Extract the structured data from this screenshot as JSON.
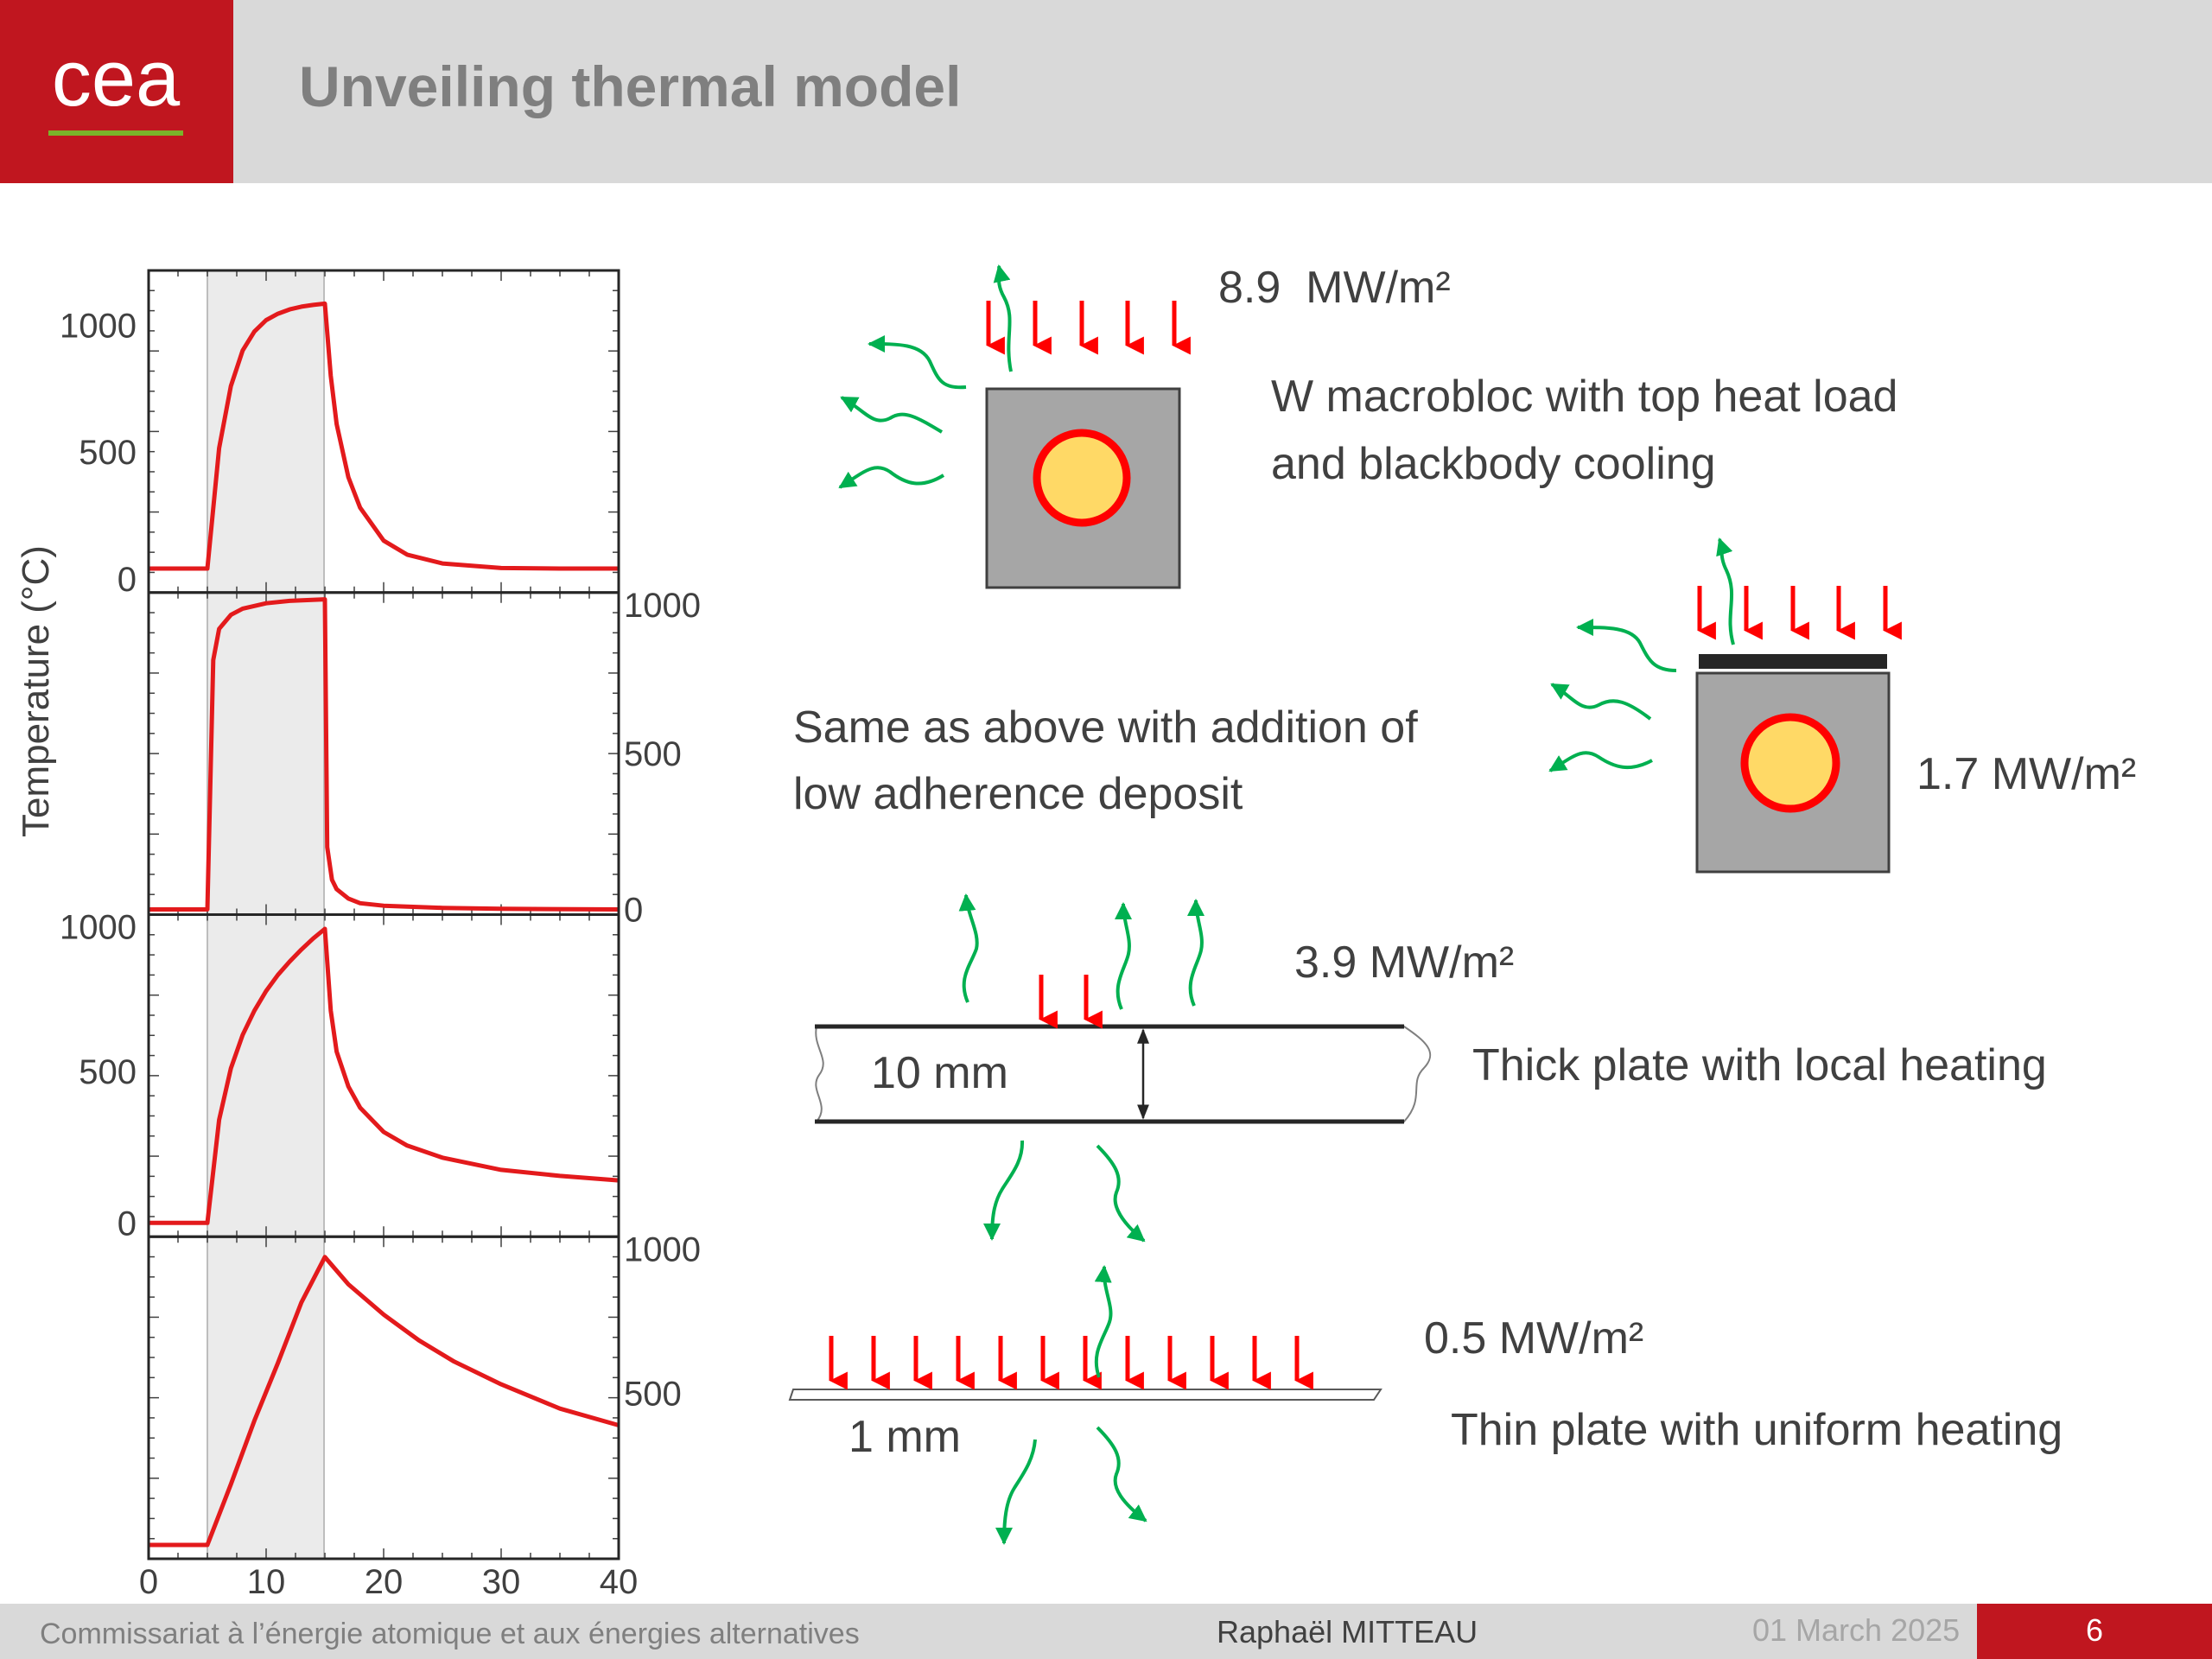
{
  "header": {
    "logo_text": "cea",
    "title": "Unveiling thermal model",
    "colors": {
      "band": "#d9d9d9",
      "brand_red": "#c0161f",
      "logo_line": "#7ab42a"
    }
  },
  "footer": {
    "organization": "Commissariat à l’énergie atomique et aux énergies alternatives",
    "author": "Raphaël MITTEAU",
    "date": "01 March 2025",
    "page": "6"
  },
  "chart_data": {
    "type": "line",
    "ylabel": "Temperature (°C)",
    "xlim": [
      0,
      40
    ],
    "x_ticks": [
      "0",
      "10",
      "20",
      "30",
      "40"
    ],
    "shaded_interval": [
      5,
      15
    ],
    "line_color": "#e31a1c",
    "grid": false,
    "panels": [
      {
        "y_axis_side": "left",
        "y_ticks": [
          "1000",
          "500",
          "0"
        ],
        "ylim": [
          0,
          1100
        ],
        "x": [
          0,
          5,
          5,
          6,
          7,
          8,
          9,
          10,
          11,
          12,
          13,
          14,
          15,
          15.5,
          16,
          17,
          18,
          20,
          22,
          25,
          30,
          35,
          40
        ],
        "y": [
          40,
          40,
          40,
          515,
          760,
          900,
          975,
          1020,
          1045,
          1062,
          1073,
          1080,
          1085,
          800,
          610,
          400,
          280,
          150,
          95,
          60,
          42,
          40,
          40
        ]
      },
      {
        "y_axis_side": "right",
        "y_ticks": [
          "1000",
          "500",
          "0"
        ],
        "ylim": [
          0,
          1000
        ],
        "x": [
          0,
          5,
          5,
          5.5,
          6,
          7,
          8,
          10,
          12,
          15,
          15.2,
          15.6,
          16,
          17,
          18,
          20,
          25,
          30,
          40
        ],
        "y": [
          0,
          0,
          0,
          800,
          900,
          945,
          965,
          982,
          990,
          995,
          200,
          95,
          65,
          35,
          20,
          12,
          5,
          2,
          0
        ]
      },
      {
        "y_axis_side": "left",
        "y_ticks": [
          "1000",
          "500",
          "0"
        ],
        "ylim": [
          0,
          1000
        ],
        "x": [
          0,
          5,
          5,
          6,
          7,
          8,
          9,
          10,
          11,
          12,
          13,
          14,
          15,
          15.5,
          16,
          17,
          18,
          20,
          22,
          25,
          30,
          35,
          40
        ],
        "y": [
          0,
          0,
          0,
          340,
          510,
          620,
          700,
          765,
          818,
          862,
          902,
          938,
          970,
          700,
          565,
          450,
          380,
          300,
          255,
          215,
          175,
          155,
          140
        ]
      },
      {
        "y_axis_side": "right",
        "y_ticks": [
          "1000",
          "500"
        ],
        "ylim": [
          0,
          1000
        ],
        "x": [
          0,
          5,
          7,
          9,
          11,
          13,
          15,
          17,
          20,
          23,
          26,
          30,
          35,
          40
        ],
        "y": [
          0,
          0,
          200,
          410,
          600,
          800,
          950,
          860,
          760,
          675,
          605,
          530,
          450,
          395
        ]
      }
    ]
  },
  "diagrams": [
    {
      "heat_flux": "8.9  MW/m²",
      "caption_lines": [
        "W macrobloc with top heat load",
        "and blackbody cooling"
      ]
    },
    {
      "heat_flux": "1.7 MW/m²",
      "caption_lines": [
        "Same as above with addition of",
        "low adherence deposit"
      ]
    },
    {
      "heat_flux": "3.9 MW/m²",
      "thickness": "10 mm",
      "caption": "Thick plate with local heating"
    },
    {
      "heat_flux": "0.5 MW/m²",
      "thickness": "1 mm",
      "caption": "Thin plate with uniform heating"
    }
  ],
  "colors": {
    "heat_arrow": "#ff0000",
    "radiation": "#00b050",
    "block": "#a6a6a6",
    "pipe_fill": "#ffd966",
    "pipe_ring": "#ff0000"
  }
}
